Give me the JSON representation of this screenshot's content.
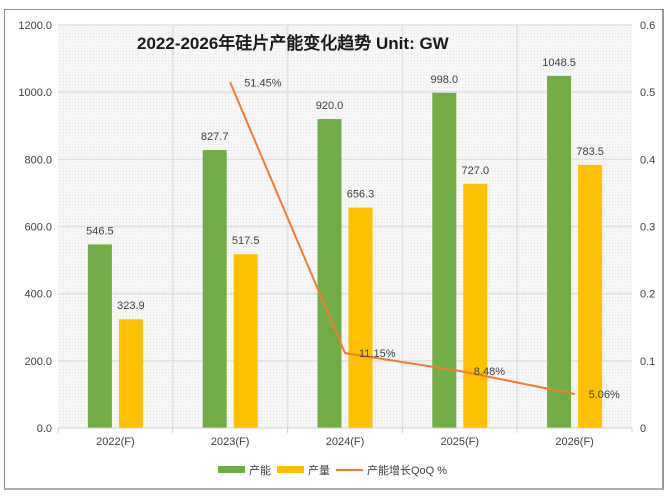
{
  "chart_data": {
    "type": "bar",
    "title": "2022-2026年硅片产能变化趋势 Unit: GW",
    "categories": [
      "2022(F)",
      "2023(F)",
      "2024(F)",
      "2025(F)",
      "2026(F)"
    ],
    "series": [
      {
        "name": "产能",
        "type": "bar",
        "axis": "left",
        "color": "#70AD47",
        "values": [
          546.5,
          827.7,
          920.0,
          998.0,
          1048.5
        ],
        "labels": [
          "546.5",
          "827.7",
          "920.0",
          "998.0",
          "1048.5"
        ]
      },
      {
        "name": "产量",
        "type": "bar",
        "axis": "left",
        "color": "#FFC000",
        "values": [
          323.9,
          517.5,
          656.3,
          727.0,
          783.5
        ],
        "labels": [
          "323.9",
          "517.5",
          "656.3",
          "727.0",
          "783.5"
        ]
      },
      {
        "name": "产能增长QoQ %",
        "type": "line",
        "axis": "right",
        "color": "#ED7D31",
        "values": [
          null,
          0.5145,
          0.1115,
          0.0848,
          0.0506
        ],
        "labels": [
          "",
          "51.45%",
          "11.15%",
          "8.48%",
          "5.06%"
        ]
      }
    ],
    "ylim_left": [
      0,
      1200
    ],
    "ylim_right": [
      0,
      0.6
    ],
    "yticks_left": [
      "0.0",
      "200.0",
      "400.0",
      "600.0",
      "800.0",
      "1000.0",
      "1200.0"
    ],
    "yticks_right": [
      "0",
      "0.1",
      "0.2",
      "0.3",
      "0.4",
      "0.5",
      "0.6"
    ],
    "xlabel": "",
    "ylabel": "",
    "grid": true,
    "legend_position": "bottom"
  }
}
